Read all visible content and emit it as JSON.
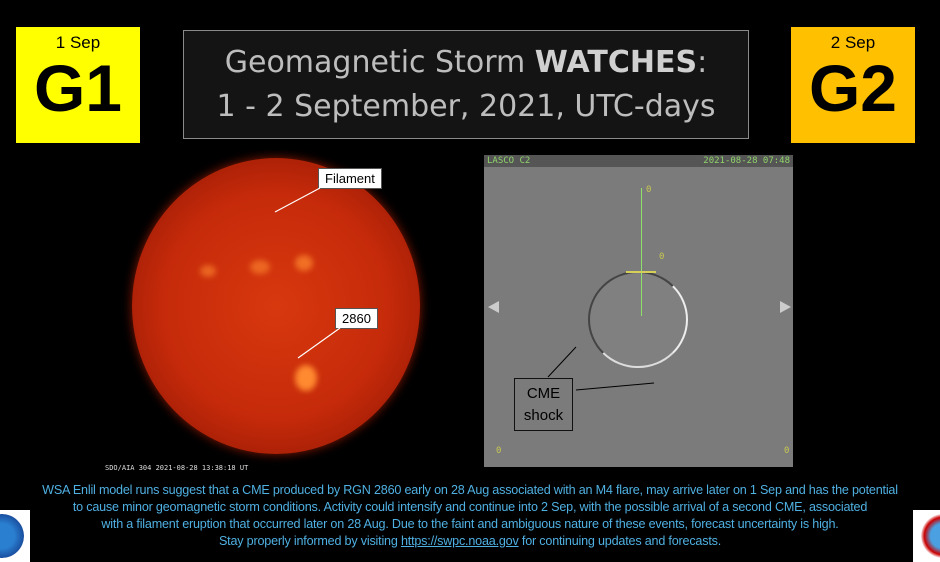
{
  "watches": [
    {
      "date": "1 Sep",
      "level": "G1",
      "color": "#ffff00"
    },
    {
      "date": "2 Sep",
      "level": "G2",
      "color": "#ffc000"
    }
  ],
  "title": {
    "line1_pre": "Geomagnetic Storm ",
    "line1_bold": "WATCHES",
    "line1_post": ":",
    "line2": "1 - 2 September, 2021, UTC-days"
  },
  "sun_image": {
    "caption": "SDO/AIA  304    2021-08-28 13:38:18 UT",
    "labels": {
      "filament": "Filament",
      "region": "2860"
    }
  },
  "lasco_image": {
    "instrument": "LASCO C2",
    "timestamp": "2021-08-28 07:48",
    "marker": "0",
    "label": "CME\nshock",
    "label_line1": "CME",
    "label_line2": "shock"
  },
  "bottom": {
    "line1": "WSA Enlil model runs suggest that a CME produced by RGN 2860 early on 28 Aug associated with an M4 flare, may arrive later on 1 Sep and has the potential",
    "line2": "to cause minor geomagnetic storm conditions. Activity could intensify and continue into 2 Sep, with the possible arrival of a second CME, associated",
    "line3": "with a  filament eruption that occurred later on 28 Aug.  Due to the faint and ambiguous nature of these events, forecast uncertainty is high.",
    "line4_pre": "Stay properly informed by visiting ",
    "link": "https://swpc.noaa.gov",
    "line4_post": " for continuing updates and forecasts.",
    "text_color": "#4fb0e2"
  },
  "logos": {
    "left": "NOAA",
    "right": "NATIONAL WEATHER SERVICE"
  }
}
